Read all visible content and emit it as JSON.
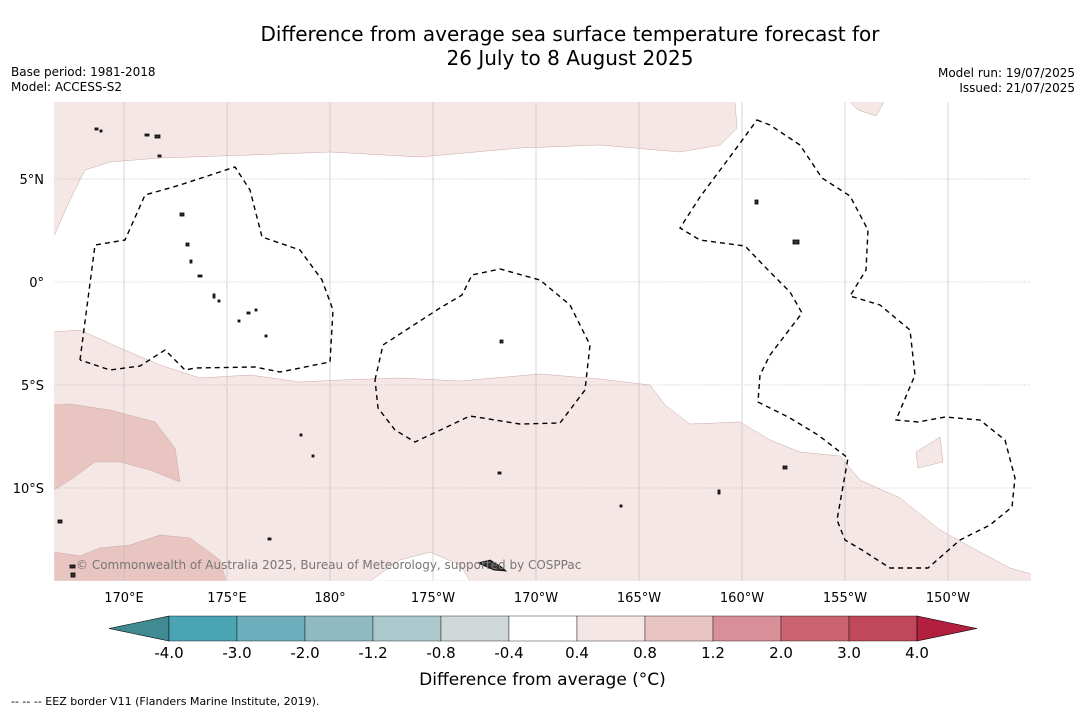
{
  "title_line1": "Difference from average sea surface temperature forecast for",
  "title_line2": "26 July to 8 August 2025",
  "base_period": "Base period: 1981-2018",
  "model": "Model: ACCESS-S2",
  "model_run": "Model run: 19/07/2025",
  "issued": "Issued: 21/07/2025",
  "credit": "© Commonwealth of Australia 2025, Bureau of Meteorology, supported by COSPPac",
  "lat_labels": [
    "5°N",
    "0°",
    "5°S",
    "10°S"
  ],
  "lon_labels": [
    "170°E",
    "175°E",
    "180°",
    "175°W",
    "170°W",
    "165°W",
    "160°W",
    "155°W",
    "150°W"
  ],
  "colorbar": {
    "title": "Difference from average (°C)",
    "ticks": [
      "-4.0",
      "-3.0",
      "-2.0",
      "-1.2",
      "-0.8",
      "-0.4",
      "0.4",
      "0.8",
      "1.2",
      "2.0",
      "3.0",
      "4.0"
    ],
    "colors": [
      "#3f8b91",
      "#4aa4b4",
      "#6eaebc",
      "#8fbac4",
      "#abc9cd",
      "#cfd7d8",
      "#ffffff",
      "#f5e7e6",
      "#e8c5c1",
      "#d98f97",
      "#c9646f",
      "#c0485a",
      "#b31f3f"
    ]
  },
  "footer": "--  --  -- EEZ border V11 (Flanders Marine Institute, 2019)."
}
